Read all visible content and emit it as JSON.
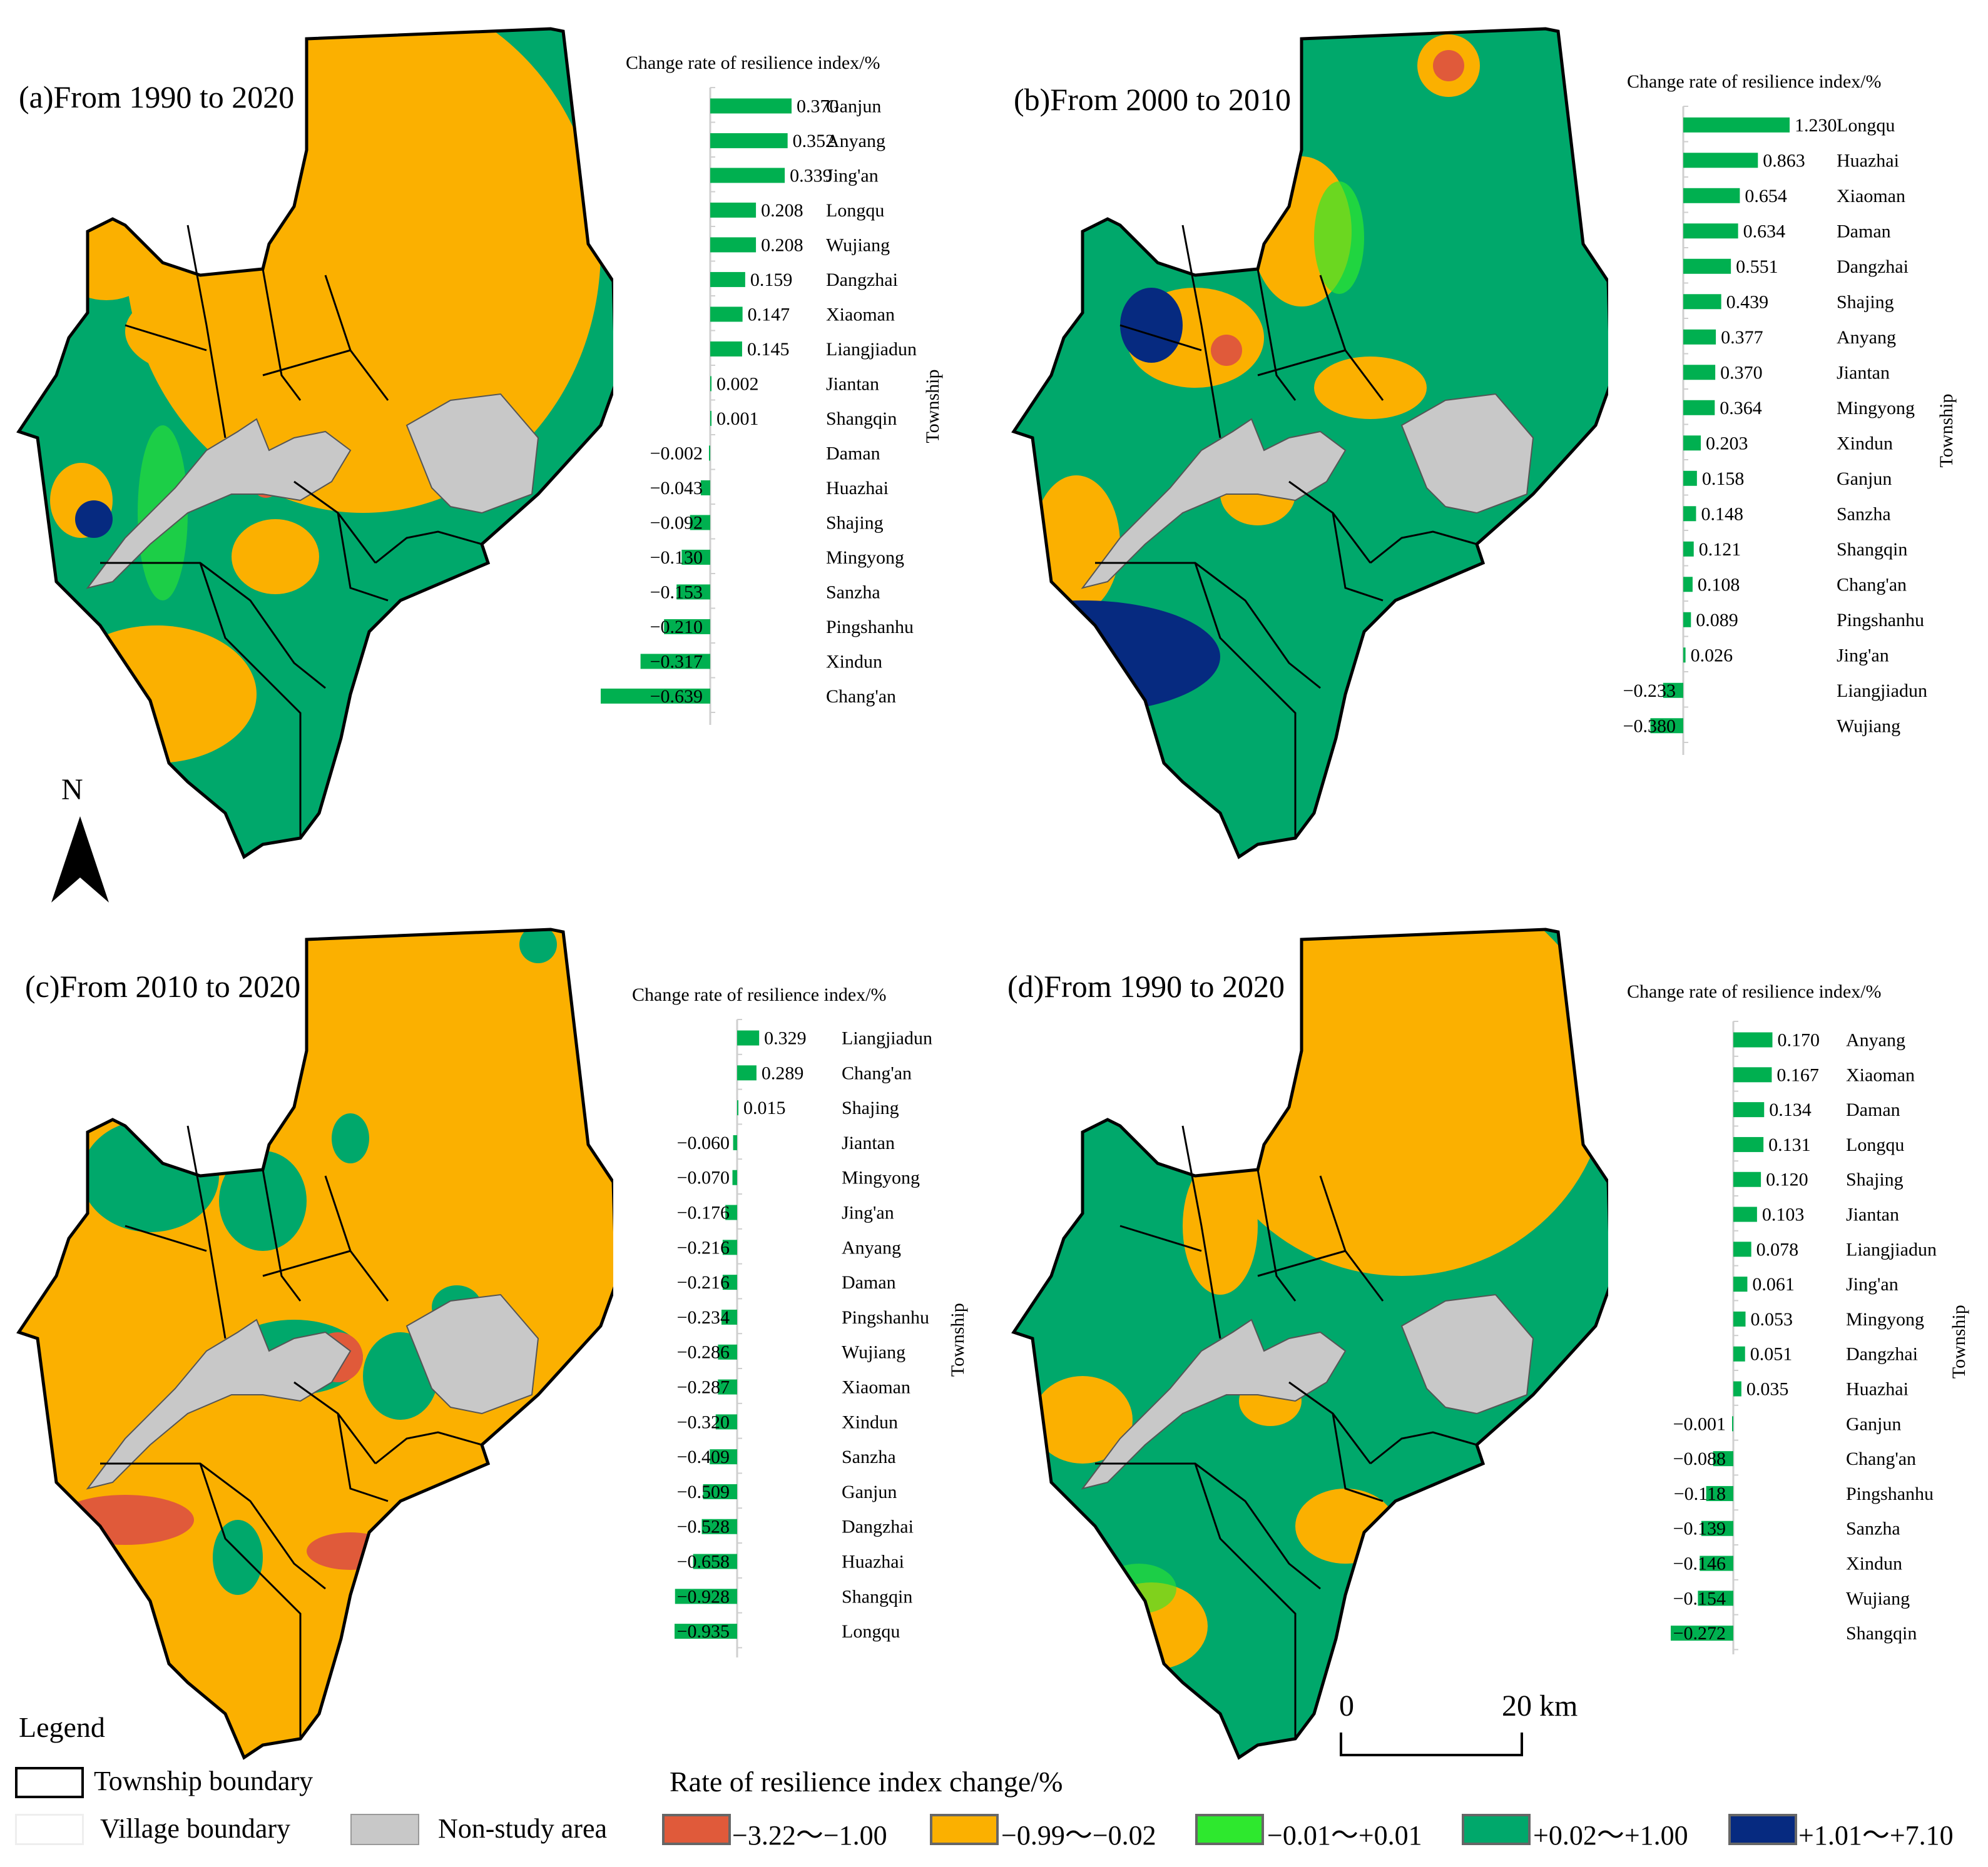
{
  "panels": [
    {
      "id": "a",
      "title": "(a)From 1990 to 2020",
      "chart_title": "Change rate of resilience index/%",
      "axis_label": "Township"
    },
    {
      "id": "b",
      "title": "(b)From 2000 to 2010",
      "chart_title": "Change rate of resilience index/%",
      "axis_label": "Township"
    },
    {
      "id": "c",
      "title": "(c)From 2010 to 2020",
      "chart_title": "Change rate of resilience index/%",
      "axis_label": "Township"
    },
    {
      "id": "d",
      "title": "(d)From 1990 to 2020",
      "chart_title": "Change rate of resilience index/%",
      "axis_label": "Township"
    }
  ],
  "chart_data": [
    {
      "type": "bar",
      "orientation": "horizontal",
      "title": "Change rate of resilience index/%",
      "ylabel": "Township",
      "categories": [
        "Ganjun",
        "Anyang",
        "Jing'an",
        "Longqu",
        "Wujiang",
        "Dangzhai",
        "Xiaoman",
        "Liangjiadun",
        "Jiantan",
        "Shangqin",
        "Daman",
        "Huazhai",
        "Shajing",
        "Mingyong",
        "Sanzha",
        "Pingshanhu",
        "Xindun",
        "Chang'an"
      ],
      "values": [
        0.37,
        0.352,
        0.339,
        0.208,
        0.208,
        0.159,
        0.147,
        0.145,
        0.002,
        0.001,
        -0.002,
        -0.043,
        -0.092,
        -0.13,
        -0.153,
        -0.21,
        -0.317,
        -0.639
      ],
      "labels": [
        "0.370",
        "0.352",
        "0.339",
        "0.208",
        "0.208",
        "0.159",
        "0.147",
        "0.145",
        "0.002",
        "0.001",
        "−0.002",
        "−0.043",
        "−0.092",
        "−0.130",
        "−0.153",
        "−0.210",
        "−0.317",
        "−0.639"
      ],
      "xlim": [
        -0.64,
        0.4
      ]
    },
    {
      "type": "bar",
      "orientation": "horizontal",
      "title": "Change rate of resilience index/%",
      "ylabel": "Township",
      "categories": [
        "Longqu",
        "Huazhai",
        "Xiaoman",
        "Daman",
        "Dangzhai",
        "Shajing",
        "Anyang",
        "Jiantan",
        "Mingyong",
        "Xindun",
        "Ganjun",
        "Sanzha",
        "Shangqin",
        "Chang'an",
        "Pingshanhu",
        "Jing'an",
        "Liangjiadun",
        "Wujiang"
      ],
      "values": [
        1.23,
        0.863,
        0.654,
        0.634,
        0.551,
        0.439,
        0.377,
        0.37,
        0.364,
        0.203,
        0.158,
        0.148,
        0.121,
        0.108,
        0.089,
        0.026,
        -0.233,
        -0.38
      ],
      "labels": [
        "1.230",
        "0.863",
        "0.654",
        "0.634",
        "0.551",
        "0.439",
        "0.377",
        "0.370",
        "0.364",
        "0.203",
        "0.158",
        "0.148",
        "0.121",
        "0.108",
        "0.089",
        "0.026",
        "−0.233",
        "−0.380"
      ],
      "xlim": [
        -0.38,
        1.25
      ]
    },
    {
      "type": "bar",
      "orientation": "horizontal",
      "title": "Change rate of resilience index/%",
      "ylabel": "Township",
      "categories": [
        "Liangjiadun",
        "Chang'an",
        "Shajing",
        "Jiantan",
        "Mingyong",
        "Jing'an",
        "Anyang",
        "Daman",
        "Pingshanhu",
        "Wujiang",
        "Xiaoman",
        "Xindun",
        "Sanzha",
        "Ganjun",
        "Dangzhai",
        "Huazhai",
        "Shangqin",
        "Longqu"
      ],
      "values": [
        0.329,
        0.289,
        0.015,
        -0.06,
        -0.07,
        -0.176,
        -0.216,
        -0.216,
        -0.234,
        -0.286,
        -0.287,
        -0.32,
        -0.409,
        -0.509,
        -0.528,
        -0.658,
        -0.928,
        -0.935
      ],
      "labels": [
        "0.329",
        "0.289",
        "0.015",
        "−0.060",
        "−0.070",
        "−0.176",
        "−0.216",
        "−0.216",
        "−0.234",
        "−0.286",
        "−0.287",
        "−0.320",
        "−0.409",
        "−0.509",
        "−0.528",
        "−0.658",
        "−0.928",
        "−0.935"
      ],
      "xlim": [
        -0.94,
        0.35
      ]
    },
    {
      "type": "bar",
      "orientation": "horizontal",
      "title": "Change rate of resilience index/%",
      "ylabel": "Township",
      "categories": [
        "Anyang",
        "Xiaoman",
        "Daman",
        "Longqu",
        "Shajing",
        "Jiantan",
        "Liangjiadun",
        "Jing'an",
        "Mingyong",
        "Dangzhai",
        "Huazhai",
        "Ganjun",
        "Chang'an",
        "Pingshanhu",
        "Sanzha",
        "Xindun",
        "Wujiang",
        "Shangqin"
      ],
      "values": [
        0.17,
        0.167,
        0.134,
        0.131,
        0.12,
        0.103,
        0.078,
        0.061,
        0.053,
        0.051,
        0.035,
        -0.001,
        -0.088,
        -0.118,
        -0.139,
        -0.146,
        -0.154,
        -0.272
      ],
      "labels": [
        "0.170",
        "0.167",
        "0.134",
        "0.131",
        "0.120",
        "0.103",
        "0.078",
        "0.061",
        "0.053",
        "0.051",
        "0.035",
        "−0.001",
        "−0.088",
        "−0.118",
        "−0.139",
        "−0.146",
        "−0.154",
        "−0.272"
      ],
      "xlim": [
        -0.28,
        0.18
      ]
    }
  ],
  "north_arrow": {
    "label": "N"
  },
  "scale_bar": {
    "start_label": "0",
    "end_label": "20 km"
  },
  "legend": {
    "title": "Legend",
    "township_boundary": "Township boundary",
    "village_boundary": "Village boundary",
    "non_study_area": "Non-study area",
    "rate_title": "Rate of resilience index change/%",
    "classes": [
      {
        "label": "−3.22～−1.00",
        "color": "#e05a3a"
      },
      {
        "label": "−0.99～−0.02",
        "color": "#fbb000"
      },
      {
        "label": "−0.01～+0.01",
        "color": "#2ee82e"
      },
      {
        "label": "+0.02～+1.00",
        "color": "#00a86b"
      },
      {
        "label": "+1.01～+7.10",
        "color": "#062a80"
      }
    ]
  },
  "colors": {
    "bar": "#00b050",
    "non_study": "#c8c8c8"
  }
}
